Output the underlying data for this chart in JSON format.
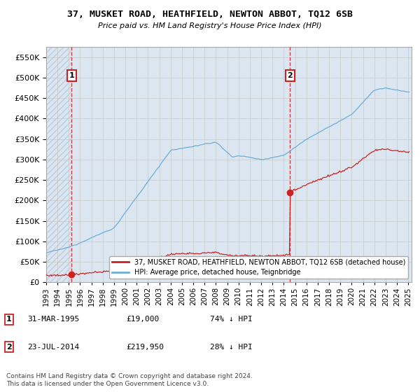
{
  "title": "37, MUSKET ROAD, HEATHFIELD, NEWTON ABBOT, TQ12 6SB",
  "subtitle": "Price paid vs. HM Land Registry's House Price Index (HPI)",
  "sale1_year": 1995.25,
  "sale1_price": 19000,
  "sale2_year": 2014.56,
  "sale2_price": 219950,
  "legend_line1": "37, MUSKET ROAD, HEATHFIELD, NEWTON ABBOT, TQ12 6SB (detached house)",
  "legend_line2": "HPI: Average price, detached house, Teignbridge",
  "footer": "Contains HM Land Registry data © Crown copyright and database right 2024.\nThis data is licensed under the Open Government Licence v3.0.",
  "ylim_max": 575000,
  "hpi_color": "#6baed6",
  "sale_color": "#cc2222",
  "vline_color": "#cc2222",
  "grid_color": "#c8c8c8",
  "background_color": "#dce6f1",
  "hatch_color": "#c0cce0"
}
